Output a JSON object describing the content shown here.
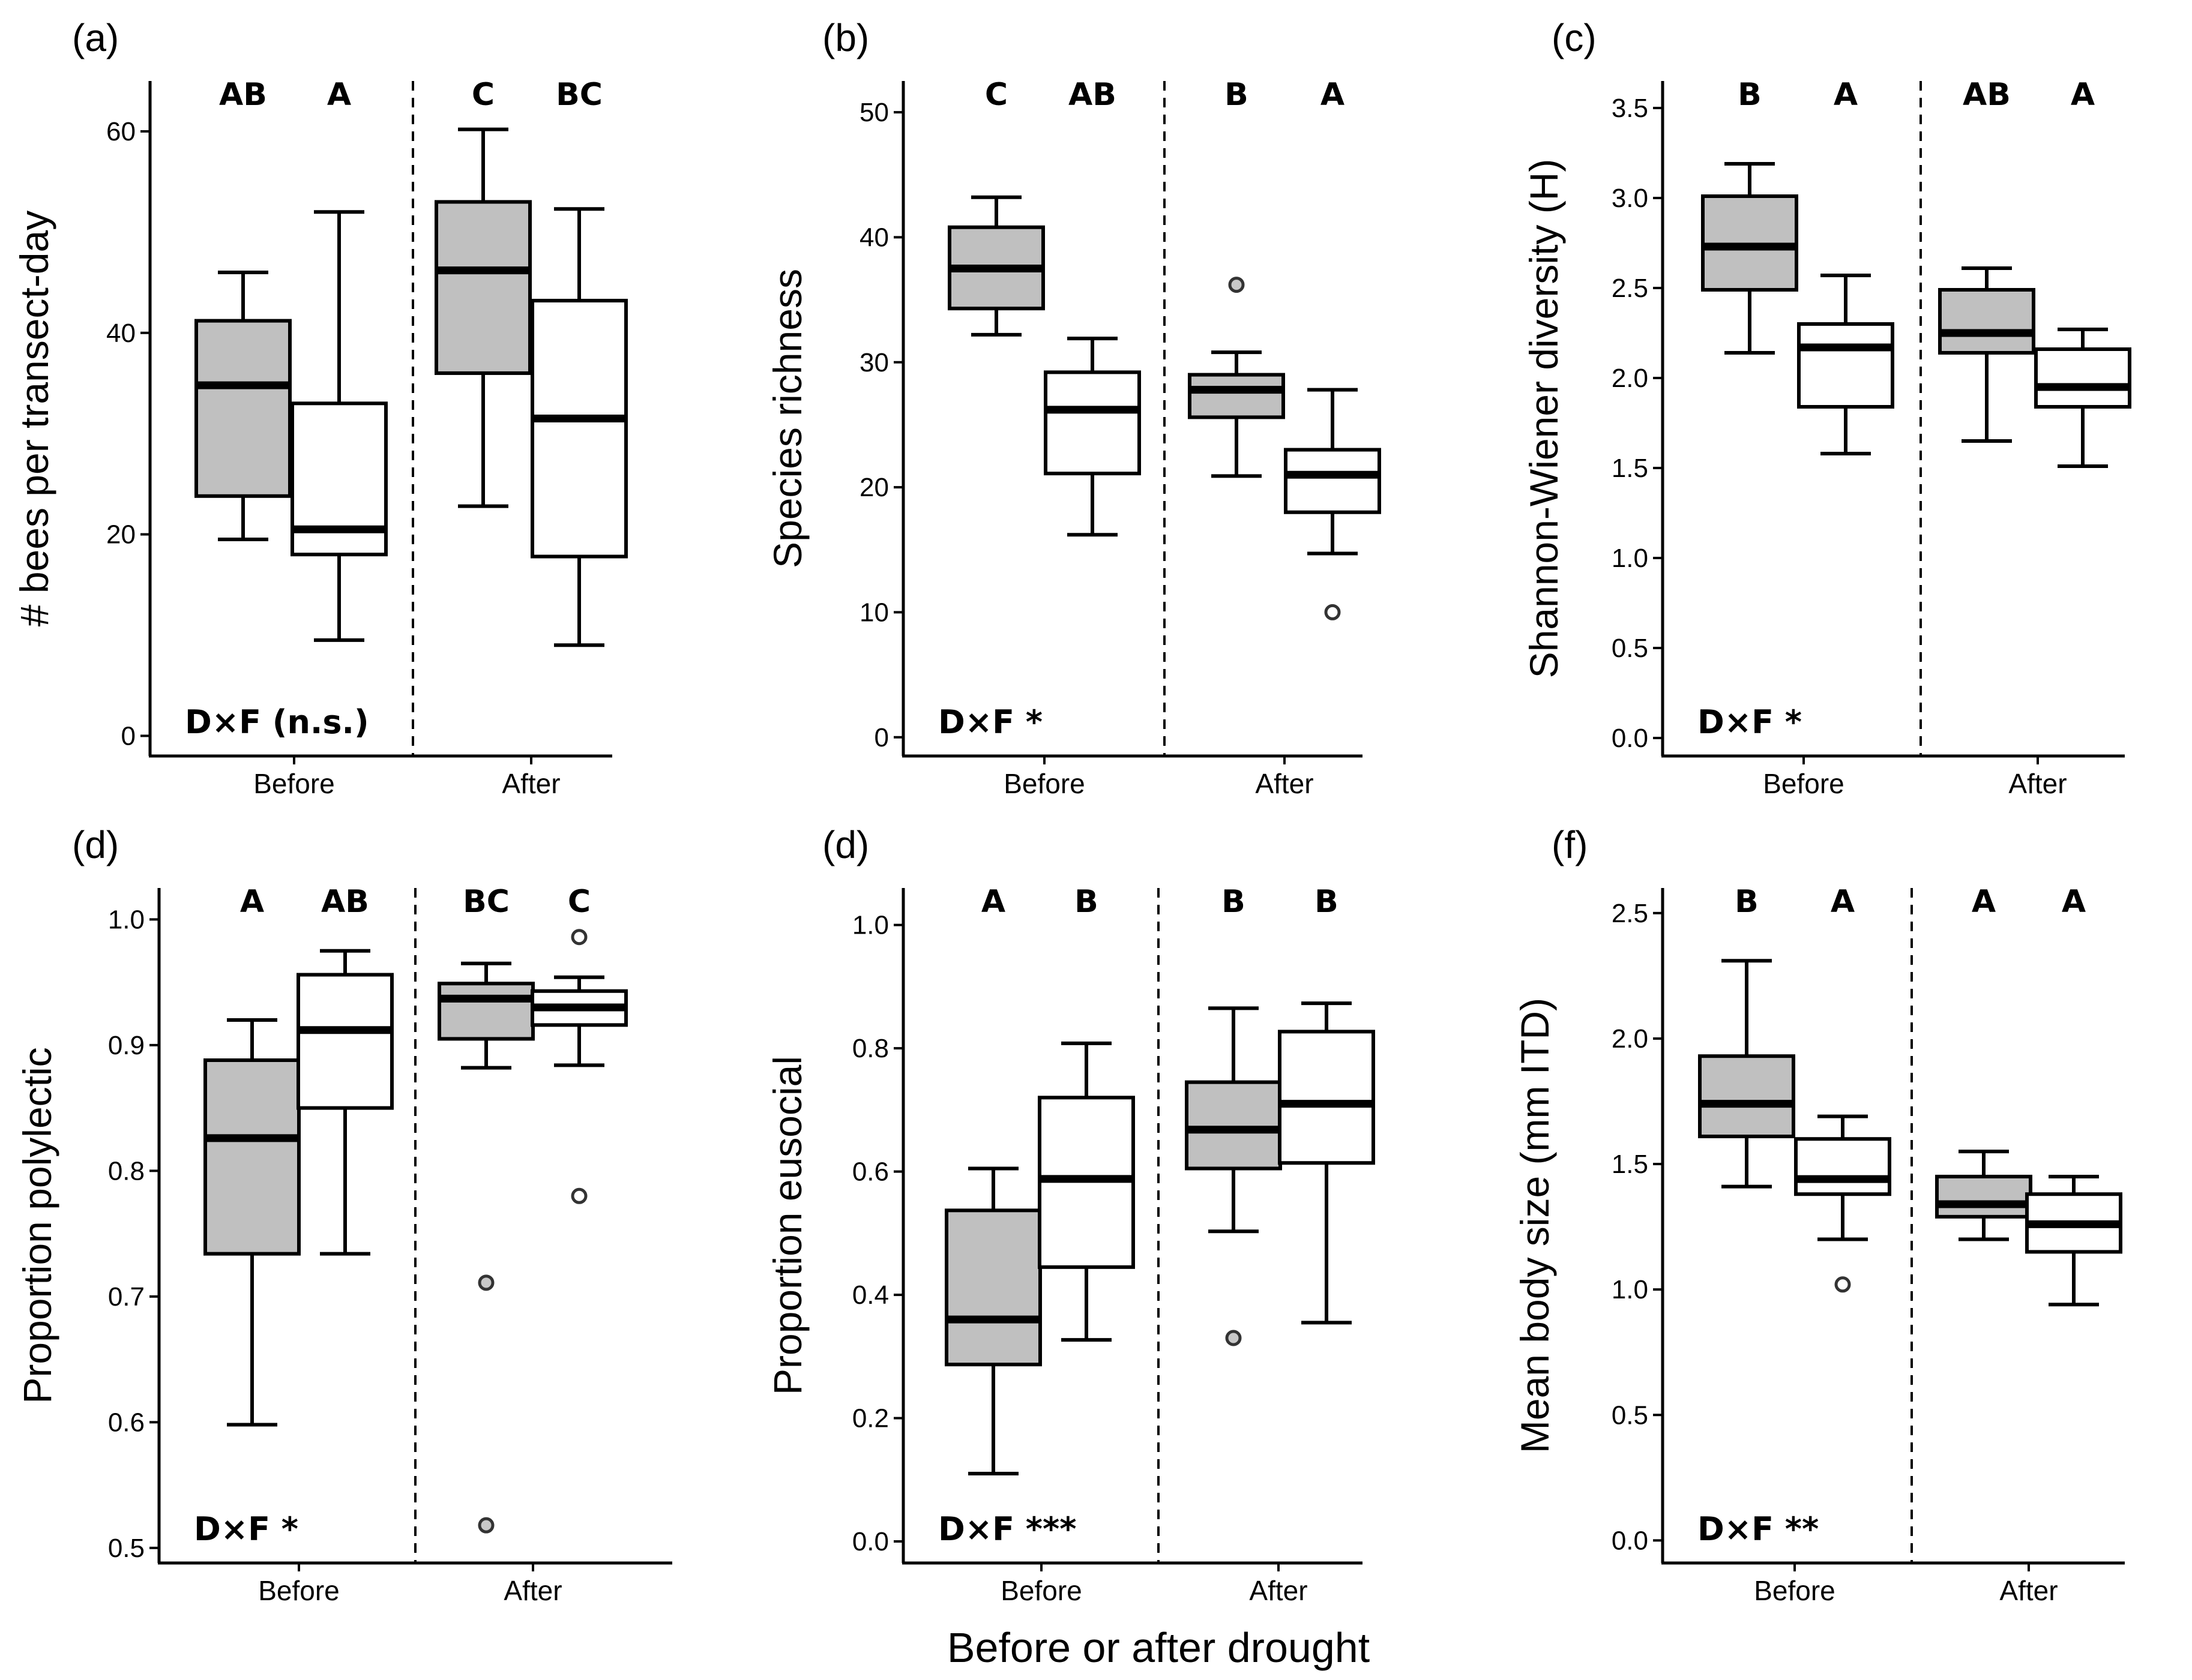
{
  "figure": {
    "xlabel": "Before or after drought"
  },
  "chart_data": [
    {
      "type": "box",
      "panel": "(a)",
      "ylabel": "# bees per transect-day",
      "ylim": [
        -2,
        65
      ],
      "yticks": [
        0,
        20,
        40,
        60
      ],
      "tick_labels": [
        "0",
        "20",
        "40",
        "60"
      ],
      "categories": [
        "Before",
        "After"
      ],
      "annotation": "D×F (n.s.)",
      "boxes": [
        {
          "group": "Before",
          "fill": "#c0c0c0",
          "letter": "AB",
          "min": 19.5,
          "q1": 23.8,
          "median": 34.8,
          "q3": 41.2,
          "max": 46,
          "outliers": []
        },
        {
          "group": "Before",
          "fill": "#ffffff",
          "letter": "A",
          "min": 9.5,
          "q1": 18,
          "median": 20.5,
          "q3": 33,
          "max": 52,
          "outliers": []
        },
        {
          "group": "After",
          "fill": "#c0c0c0",
          "letter": "C",
          "min": 22.8,
          "q1": 36,
          "median": 46.2,
          "q3": 53,
          "max": 60.2,
          "outliers": []
        },
        {
          "group": "After",
          "fill": "#ffffff",
          "letter": "BC",
          "min": 9,
          "q1": 17.8,
          "median": 31.5,
          "q3": 43.2,
          "max": 52.3,
          "outliers": []
        }
      ]
    },
    {
      "type": "box",
      "panel": "(b)",
      "ylabel": "Species richness",
      "ylim": [
        -1.5,
        52.5
      ],
      "yticks": [
        0,
        10,
        20,
        30,
        40,
        50
      ],
      "tick_labels": [
        "0",
        "10",
        "20",
        "30",
        "40",
        "50"
      ],
      "categories": [
        "Before",
        "After"
      ],
      "annotation": "D×F *",
      "boxes": [
        {
          "group": "Before",
          "fill": "#c0c0c0",
          "letter": "C",
          "min": 32.2,
          "q1": 34.3,
          "median": 37.5,
          "q3": 40.8,
          "max": 43.2,
          "outliers": []
        },
        {
          "group": "Before",
          "fill": "#ffffff",
          "letter": "AB",
          "min": 16.2,
          "q1": 21.1,
          "median": 26.2,
          "q3": 29.2,
          "max": 31.9,
          "outliers": []
        },
        {
          "group": "After",
          "fill": "#c0c0c0",
          "letter": "B",
          "min": 20.9,
          "q1": 25.6,
          "median": 27.8,
          "q3": 29,
          "max": 30.8,
          "outliers": [
            36.2
          ]
        },
        {
          "group": "After",
          "fill": "#ffffff",
          "letter": "A",
          "min": 14.7,
          "q1": 18,
          "median": 21,
          "q3": 23,
          "max": 27.8,
          "outliers": [
            10
          ]
        }
      ]
    },
    {
      "type": "box",
      "panel": "(c)",
      "ylabel": "Shannon-Wiener diversity (H)",
      "ylim": [
        -0.1,
        3.65
      ],
      "yticks": [
        0,
        0.5,
        1,
        1.5,
        2,
        2.5,
        3,
        3.5
      ],
      "tick_labels": [
        "0.0",
        "0.5",
        "1.0",
        "1.5",
        "2.0",
        "2.5",
        "3.0",
        "3.5"
      ],
      "categories": [
        "Before",
        "After"
      ],
      "annotation": "D×F *",
      "boxes": [
        {
          "group": "Before",
          "fill": "#c0c0c0",
          "letter": "B",
          "min": 2.14,
          "q1": 2.49,
          "median": 2.73,
          "q3": 3.01,
          "max": 3.19,
          "outliers": []
        },
        {
          "group": "Before",
          "fill": "#ffffff",
          "letter": "A",
          "min": 1.58,
          "q1": 1.84,
          "median": 2.17,
          "q3": 2.3,
          "max": 2.57,
          "outliers": []
        },
        {
          "group": "After",
          "fill": "#c0c0c0",
          "letter": "AB",
          "min": 1.65,
          "q1": 2.14,
          "median": 2.25,
          "q3": 2.49,
          "max": 2.61,
          "outliers": []
        },
        {
          "group": "After",
          "fill": "#ffffff",
          "letter": "A",
          "min": 1.51,
          "q1": 1.84,
          "median": 1.95,
          "q3": 2.16,
          "max": 2.27,
          "outliers": []
        }
      ]
    },
    {
      "type": "box",
      "panel": "(d)",
      "ylabel": "Proportion polylectic",
      "ylim": [
        0.488,
        1.025
      ],
      "yticks": [
        0.5,
        0.6,
        0.7,
        0.8,
        0.9,
        1.0
      ],
      "tick_labels": [
        "0.5",
        "0.6",
        "0.7",
        "0.8",
        "0.9",
        "1.0"
      ],
      "categories": [
        "Before",
        "After"
      ],
      "annotation": "D×F *",
      "boxes": [
        {
          "group": "Before",
          "fill": "#c0c0c0",
          "letter": "A",
          "min": 0.598,
          "q1": 0.734,
          "median": 0.826,
          "q3": 0.888,
          "max": 0.92,
          "outliers": []
        },
        {
          "group": "Before",
          "fill": "#ffffff",
          "letter": "AB",
          "min": 0.734,
          "q1": 0.85,
          "median": 0.912,
          "q3": 0.956,
          "max": 0.975,
          "outliers": []
        },
        {
          "group": "After",
          "fill": "#c0c0c0",
          "letter": "BC",
          "min": 0.882,
          "q1": 0.905,
          "median": 0.937,
          "q3": 0.949,
          "max": 0.965,
          "outliers": [
            0.711,
            0.518
          ]
        },
        {
          "group": "After",
          "fill": "#ffffff",
          "letter": "C",
          "min": 0.884,
          "q1": 0.916,
          "median": 0.93,
          "q3": 0.943,
          "max": 0.954,
          "outliers": [
            0.986,
            0.78
          ]
        }
      ]
    },
    {
      "type": "box",
      "panel": "(d)",
      "ylabel": "Proportion eusocial",
      "ylim": [
        -0.035,
        1.06
      ],
      "yticks": [
        0,
        0.2,
        0.4,
        0.6,
        0.8,
        1.0
      ],
      "tick_labels": [
        "0.0",
        "0.2",
        "0.4",
        "0.6",
        "0.8",
        "1.0"
      ],
      "categories": [
        "Before",
        "After"
      ],
      "annotation": "D×F ***",
      "boxes": [
        {
          "group": "Before",
          "fill": "#c0c0c0",
          "letter": "A",
          "min": 0.11,
          "q1": 0.287,
          "median": 0.36,
          "q3": 0.537,
          "max": 0.605,
          "outliers": []
        },
        {
          "group": "Before",
          "fill": "#ffffff",
          "letter": "B",
          "min": 0.327,
          "q1": 0.445,
          "median": 0.588,
          "q3": 0.72,
          "max": 0.808,
          "outliers": []
        },
        {
          "group": "After",
          "fill": "#c0c0c0",
          "letter": "B",
          "min": 0.503,
          "q1": 0.605,
          "median": 0.668,
          "q3": 0.745,
          "max": 0.865,
          "outliers": [
            0.33
          ]
        },
        {
          "group": "After",
          "fill": "#ffffff",
          "letter": "B",
          "min": 0.355,
          "q1": 0.614,
          "median": 0.71,
          "q3": 0.827,
          "max": 0.873,
          "outliers": []
        }
      ]
    },
    {
      "type": "box",
      "panel": "(f)",
      "ylabel": "Mean body size (mm ITD)",
      "ylim": [
        -0.09,
        2.6
      ],
      "yticks": [
        0,
        0.5,
        1,
        1.5,
        2,
        2.5
      ],
      "tick_labels": [
        "0.0",
        "0.5",
        "1.0",
        "1.5",
        "2.0",
        "2.5"
      ],
      "categories": [
        "Before",
        "After"
      ],
      "annotation": "D×F **",
      "boxes": [
        {
          "group": "Before",
          "fill": "#c0c0c0",
          "letter": "B",
          "min": 1.41,
          "q1": 1.61,
          "median": 1.74,
          "q3": 1.93,
          "max": 2.31,
          "outliers": []
        },
        {
          "group": "Before",
          "fill": "#ffffff",
          "letter": "A",
          "min": 1.2,
          "q1": 1.38,
          "median": 1.44,
          "q3": 1.6,
          "max": 1.69,
          "outliers": [
            1.02
          ]
        },
        {
          "group": "After",
          "fill": "#c0c0c0",
          "letter": "A",
          "min": 1.2,
          "q1": 1.29,
          "median": 1.34,
          "q3": 1.45,
          "max": 1.55,
          "outliers": []
        },
        {
          "group": "After",
          "fill": "#ffffff",
          "letter": "A",
          "min": 0.94,
          "q1": 1.15,
          "median": 1.26,
          "q3": 1.38,
          "max": 1.45,
          "outliers": []
        }
      ]
    }
  ]
}
